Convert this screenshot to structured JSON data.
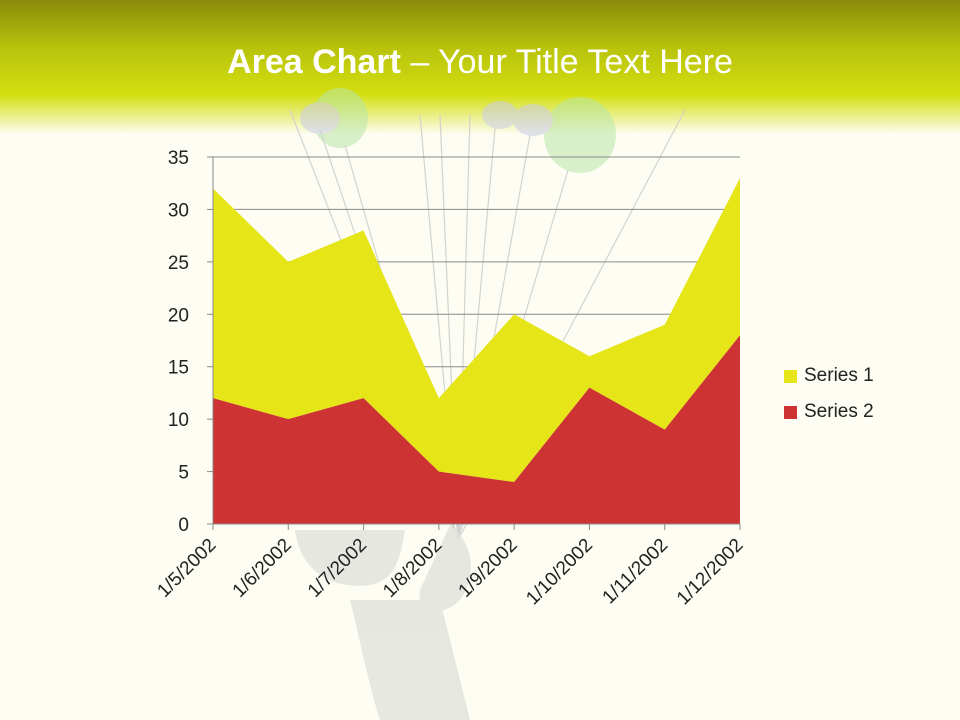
{
  "title": {
    "bold": "Area Chart",
    "rest": " – Your Title Text Here"
  },
  "chart_data": {
    "type": "area",
    "stacked": true,
    "categories": [
      "1/5/2002",
      "1/6/2002",
      "1/7/2002",
      "1/8/2002",
      "1/9/2002",
      "1/10/2002",
      "1/11/2002",
      "1/12/2002"
    ],
    "series": [
      {
        "name": "Series 1",
        "values": [
          20,
          15,
          16,
          7,
          16,
          3,
          10,
          15
        ],
        "color": "#e5e518"
      },
      {
        "name": "Series 2",
        "values": [
          12,
          10,
          12,
          5,
          4,
          13,
          9,
          18
        ],
        "color": "#cd3333"
      }
    ],
    "ylim": [
      0,
      35
    ],
    "yticks": [
      0,
      5,
      10,
      15,
      20,
      25,
      30,
      35
    ],
    "grid": true,
    "legend": "right"
  }
}
